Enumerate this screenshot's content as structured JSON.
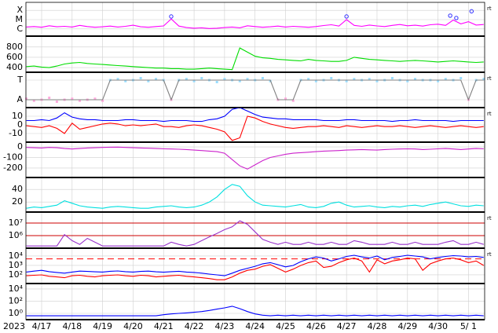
{
  "time_axis": {
    "label": "2023",
    "xlim": [
      0.485,
      15.53
    ],
    "xticks": [
      {
        "value": 1,
        "label": "4/17"
      },
      {
        "value": 2,
        "label": "4/18"
      },
      {
        "value": 3,
        "label": "4/19"
      },
      {
        "value": 4,
        "label": "4/20"
      },
      {
        "value": 5,
        "label": "4/21"
      },
      {
        "value": 6,
        "label": "4/22"
      },
      {
        "value": 7,
        "label": "4/23"
      },
      {
        "value": 8,
        "label": "4/24"
      },
      {
        "value": 9,
        "label": "4/25"
      },
      {
        "value": 10,
        "label": "4/26"
      },
      {
        "value": 11,
        "label": "4/27"
      },
      {
        "value": 12,
        "label": "4/28"
      },
      {
        "value": 13,
        "label": "4/29"
      },
      {
        "value": 14,
        "label": "4/30"
      },
      {
        "value": 15,
        "label": "5/ 1"
      }
    ],
    "x": [
      0.5,
      0.75,
      1,
      1.25,
      1.5,
      1.75,
      2,
      2.25,
      2.5,
      2.75,
      3,
      3.25,
      3.5,
      3.75,
      4,
      4.25,
      4.5,
      4.75,
      5,
      5.25,
      5.5,
      5.75,
      6,
      6.25,
      6.5,
      6.75,
      7,
      7.25,
      7.5,
      7.75,
      8,
      8.25,
      8.5,
      8.75,
      9,
      9.25,
      9.5,
      9.75,
      10,
      10.25,
      10.5,
      10.75,
      11,
      11.25,
      11.5,
      11.75,
      12,
      12.25,
      12.5,
      12.75,
      13,
      13.25,
      13.5,
      13.75,
      14,
      14.25,
      14.5,
      14.75,
      15,
      15.25,
      15.5
    ]
  },
  "chart_data": [
    {
      "type": "line",
      "log": true,
      "note": "rt",
      "ylim": [
        1.65e-07,
        0.00074
      ],
      "yticks": [
        {
          "value": 0.0001,
          "label": "X"
        },
        {
          "value": 1e-05,
          "label": "M"
        },
        {
          "value": 1e-06,
          "label": "C"
        }
      ],
      "series": [
        {
          "color": "#ff00ff",
          "values": [
            1.6e-06,
            1.8e-06,
            1.5e-06,
            2.2e-06,
            1.7e-06,
            1.9e-06,
            1.6e-06,
            2.4e-06,
            1.8e-06,
            1.5e-06,
            1.7e-06,
            2e-06,
            1.6e-06,
            1.9e-06,
            2.5e-06,
            1.7e-06,
            1.5e-06,
            1.8e-06,
            2.1e-06,
            1.2e-05,
            2e-06,
            1.4e-06,
            1.2e-06,
            1.3e-06,
            1.1e-06,
            1.2e-06,
            1.4e-06,
            1.6e-06,
            1.3e-06,
            2.2e-06,
            1.8e-06,
            1.5e-06,
            1.7e-06,
            2e-06,
            1.6e-06,
            1.9e-06,
            1.7e-06,
            1.5e-06,
            1.8e-06,
            2.3e-06,
            2.8e-06,
            2e-06,
            1e-05,
            2.4e-06,
            1.9e-06,
            2.6e-06,
            2.1e-06,
            1.8e-06,
            2.4e-06,
            3e-06,
            2.2e-06,
            2.5e-06,
            2e-06,
            2.8e-06,
            3.2e-06,
            2.4e-06,
            9e-06,
            3.5e-06,
            6e-06,
            2.6e-06,
            3e-06
          ]
        }
      ],
      "flares": {
        "color": "#3030ff",
        "x": [
          5.25,
          11.0,
          14.4,
          14.6,
          15.1
        ],
        "values": [
          2.2e-05,
          2.2e-05,
          2.7e-05,
          1.5e-05,
          8e-05
        ]
      }
    },
    {
      "type": "line",
      "ylim": [
        310,
        1010
      ],
      "yticks": [
        800,
        600,
        400
      ],
      "series": [
        {
          "color": "#00dd00",
          "values": [
            420,
            430,
            410,
            400,
            430,
            470,
            490,
            500,
            480,
            470,
            460,
            450,
            440,
            430,
            420,
            410,
            400,
            390,
            390,
            380,
            380,
            370,
            370,
            380,
            390,
            380,
            370,
            360,
            780,
            700,
            620,
            590,
            580,
            560,
            550,
            540,
            530,
            560,
            540,
            530,
            520,
            520,
            540,
            600,
            580,
            560,
            550,
            540,
            530,
            520,
            530,
            540,
            530,
            520,
            510,
            520,
            530,
            520,
            510,
            500,
            510
          ]
        }
      ]
    },
    {
      "type": "line",
      "note": "rt",
      "ylim": [
        -1.8,
        1.8
      ],
      "yticks": [
        {
          "value": 1,
          "label": "T"
        },
        {
          "value": -1,
          "label": "A"
        }
      ],
      "series": [
        {
          "color": "#99ddff",
          "style": "dots",
          "values": [
            null,
            null,
            null,
            null,
            null,
            null,
            null,
            null,
            null,
            null,
            null,
            1.0,
            1.1,
            0.9,
            1.0,
            1.2,
            0.9,
            1.1,
            1.0,
            null,
            1.0,
            1.1,
            0.9,
            1.2,
            1.0,
            0.8,
            1.1,
            1.0,
            0.9,
            1.1,
            1.0,
            1.2,
            0.9,
            null,
            null,
            null,
            1.0,
            1.1,
            0.9,
            1.0,
            1.2,
            1.0,
            0.9,
            1.1,
            1.0,
            1.1,
            0.9,
            1.0,
            1.2,
            1.0,
            0.9,
            1.1,
            1.0,
            1.0,
            0.9,
            1.1,
            1.0,
            1.2,
            null,
            1.0,
            1.1
          ]
        },
        {
          "color": "#ffaadd",
          "style": "dots",
          "values": [
            -0.9,
            -1.1,
            -1.0,
            -0.8,
            -1.2,
            -1.0,
            -0.9,
            -1.1,
            -1.0,
            -0.9,
            -1.1,
            null,
            null,
            null,
            null,
            null,
            null,
            null,
            null,
            -1.0,
            null,
            null,
            null,
            null,
            null,
            null,
            null,
            null,
            null,
            null,
            null,
            null,
            null,
            -1.0,
            -0.9,
            -1.1,
            null,
            null,
            null,
            null,
            null,
            null,
            null,
            null,
            null,
            null,
            null,
            null,
            null,
            null,
            null,
            null,
            null,
            null,
            null,
            null,
            null,
            null,
            -1.0,
            null,
            null
          ]
        },
        {
          "color": "#808080",
          "values": [
            -1,
            -1,
            -1,
            -1,
            -1,
            -1,
            -1,
            -1,
            -1,
            -1,
            -1,
            1,
            1,
            1,
            1,
            1,
            1,
            1,
            1,
            -1,
            1,
            1,
            1,
            1,
            1,
            1,
            1,
            1,
            1,
            1,
            1,
            1,
            1,
            -1,
            -1,
            -1,
            1,
            1,
            1,
            1,
            1,
            1,
            1,
            1,
            1,
            1,
            1,
            1,
            1,
            1,
            1,
            1,
            1,
            1,
            1,
            1,
            1,
            1,
            -1,
            1,
            1
          ]
        }
      ]
    },
    {
      "type": "line",
      "note": "rt",
      "ylim": [
        -20,
        20
      ],
      "yticks": [
        10,
        0,
        -10
      ],
      "series": [
        {
          "color": "#0000ff",
          "values": [
            5,
            5,
            6,
            5,
            8,
            14,
            9,
            7,
            6,
            6,
            5,
            5,
            5,
            6,
            6,
            5,
            5,
            5,
            4,
            5,
            5,
            5,
            4,
            4,
            6,
            7,
            10,
            18,
            20,
            16,
            12,
            9,
            8,
            7,
            7,
            6,
            6,
            6,
            6,
            5,
            5,
            5,
            6,
            6,
            5,
            5,
            5,
            5,
            4,
            5,
            5,
            6,
            5,
            5,
            5,
            5,
            4,
            5,
            5,
            5,
            5
          ]
        },
        {
          "color": "#ff0000",
          "values": [
            -1,
            -2,
            -3,
            -1,
            -4,
            -10,
            2,
            -5,
            -3,
            -1,
            1,
            2,
            1,
            -1,
            0,
            -1,
            0,
            1,
            -2,
            -2,
            -3,
            -1,
            0,
            -1,
            -3,
            -5,
            -8,
            -18,
            -15,
            10,
            8,
            4,
            1,
            -1,
            -3,
            -4,
            -3,
            -2,
            -2,
            -1,
            -2,
            -3,
            -1,
            -2,
            -3,
            -2,
            -1,
            -2,
            -2,
            -1,
            -2,
            -3,
            -2,
            -1,
            -2,
            -3,
            -2,
            -1,
            -2,
            -3,
            -2
          ]
        }
      ]
    },
    {
      "type": "line",
      "ylim": [
        -290,
        45
      ],
      "yticks": [
        0,
        -100,
        -200
      ],
      "series": [
        {
          "color": "#cc22cc",
          "values": [
            -5,
            -8,
            -10,
            -5,
            -8,
            -15,
            -20,
            -15,
            -10,
            -8,
            -5,
            -3,
            -2,
            -5,
            -8,
            -10,
            -12,
            -15,
            -18,
            -20,
            -22,
            -25,
            -30,
            -35,
            -40,
            -45,
            -60,
            -120,
            -180,
            -210,
            -170,
            -130,
            -100,
            -85,
            -70,
            -60,
            -55,
            -50,
            -45,
            -40,
            -38,
            -35,
            -30,
            -28,
            -25,
            -28,
            -30,
            -25,
            -22,
            -20,
            -18,
            -20,
            -25,
            -22,
            -18,
            -15,
            -20,
            -25,
            -20,
            -15,
            -18
          ]
        }
      ]
    },
    {
      "type": "line",
      "ylim": [
        4,
        59
      ],
      "yticks": [
        40,
        20
      ],
      "series": [
        {
          "color": "#00e0e0",
          "values": [
            10,
            12,
            11,
            13,
            15,
            22,
            18,
            14,
            12,
            11,
            10,
            12,
            13,
            12,
            11,
            10,
            10,
            12,
            13,
            14,
            12,
            11,
            12,
            15,
            20,
            28,
            40,
            48,
            45,
            30,
            20,
            15,
            14,
            13,
            12,
            14,
            16,
            12,
            11,
            13,
            18,
            20,
            15,
            12,
            13,
            14,
            12,
            11,
            13,
            12,
            14,
            15,
            13,
            16,
            18,
            20,
            17,
            14,
            13,
            15,
            14
          ]
        }
      ]
    },
    {
      "type": "line",
      "log": true,
      "note": "rt",
      "ylim": [
        100000,
        75000000
      ],
      "yticks": [
        {
          "value": 10000000,
          "label": "10⁷"
        },
        {
          "value": 1000000,
          "label": "10⁶"
        }
      ],
      "thresholds": {
        "color": "#cc0000",
        "dashed": false,
        "values": [
          10000000,
          1000000
        ]
      },
      "series": [
        {
          "color": "#9933cc",
          "values": [
            150000,
            150000,
            150000,
            150000,
            150000,
            1200000,
            400000,
            200000,
            600000,
            300000,
            150000,
            150000,
            150000,
            150000,
            150000,
            150000,
            150000,
            150000,
            150000,
            300000,
            200000,
            150000,
            200000,
            400000,
            800000,
            1500000,
            3000000,
            5000000,
            15000000,
            8000000,
            2000000,
            500000,
            300000,
            200000,
            300000,
            200000,
            200000,
            300000,
            200000,
            200000,
            300000,
            200000,
            200000,
            400000,
            300000,
            200000,
            200000,
            200000,
            300000,
            200000,
            200000,
            300000,
            200000,
            200000,
            200000,
            300000,
            400000,
            200000,
            200000,
            300000,
            200000
          ]
        }
      ]
    },
    {
      "type": "line",
      "log": true,
      "note": "rt",
      "ylim": [
        12,
        68000
      ],
      "yticks": [
        {
          "value": 10000,
          "label": "10⁴"
        },
        {
          "value": 1000,
          "label": "10³"
        },
        {
          "value": 100,
          "label": "10²"
        }
      ],
      "thresholds": {
        "color": "#ff0000",
        "dashed": true,
        "values": [
          5000
        ]
      },
      "series": [
        {
          "color": "#0000ff",
          "values": [
            200,
            250,
            300,
            220,
            180,
            150,
            200,
            250,
            230,
            210,
            200,
            240,
            260,
            220,
            200,
            230,
            250,
            210,
            190,
            220,
            240,
            200,
            180,
            150,
            120,
            100,
            80,
            150,
            300,
            500,
            800,
            1500,
            2000,
            1200,
            700,
            1000,
            2500,
            5000,
            8000,
            6000,
            3000,
            5000,
            9000,
            12000,
            8000,
            6000,
            10000,
            4000,
            7000,
            9000,
            12000,
            10000,
            8000,
            5000,
            7000,
            9000,
            11000,
            10000,
            8000,
            9000,
            7000
          ]
        },
        {
          "color": "#ff0000",
          "values": [
            80,
            90,
            100,
            70,
            60,
            50,
            80,
            90,
            70,
            60,
            80,
            90,
            100,
            80,
            70,
            90,
            80,
            60,
            70,
            80,
            90,
            70,
            60,
            50,
            40,
            30,
            30,
            60,
            150,
            300,
            400,
            800,
            1200,
            500,
            200,
            400,
            1000,
            2000,
            3000,
            600,
            800,
            2000,
            4000,
            6000,
            3000,
            200,
            4000,
            1500,
            3000,
            4000,
            6000,
            5000,
            300,
            1500,
            3000,
            5000,
            6000,
            4000,
            2000,
            3000,
            1000
          ]
        }
      ]
    },
    {
      "type": "line",
      "log": true,
      "ylim": [
        0.093,
        79000
      ],
      "yticks": [
        {
          "value": 10000,
          "label": "10⁴"
        },
        {
          "value": 100,
          "label": "10²"
        },
        {
          "value": 1,
          "label": "10⁰"
        }
      ],
      "series": [
        {
          "color": "#0000ff",
          "values": [
            0.4,
            0.4,
            0.4,
            0.4,
            0.4,
            0.4,
            0.4,
            0.4,
            0.4,
            0.4,
            0.4,
            0.4,
            0.4,
            0.4,
            0.4,
            0.4,
            0.4,
            0.4,
            0.6,
            0.8,
            1,
            1.2,
            1.5,
            2,
            3,
            5,
            8,
            15,
            6,
            2,
            0.8,
            0.5,
            0.4,
            0.5,
            0.4,
            0.5,
            0.4,
            0.5,
            0.4,
            0.5,
            0.4,
            0.5,
            0.4,
            0.5,
            0.4,
            0.5,
            0.4,
            0.5,
            0.4,
            0.5,
            0.4,
            0.5,
            0.4,
            0.5,
            0.4,
            0.5,
            0.4,
            0.5,
            0.4,
            0.5,
            0.4
          ]
        }
      ]
    }
  ]
}
